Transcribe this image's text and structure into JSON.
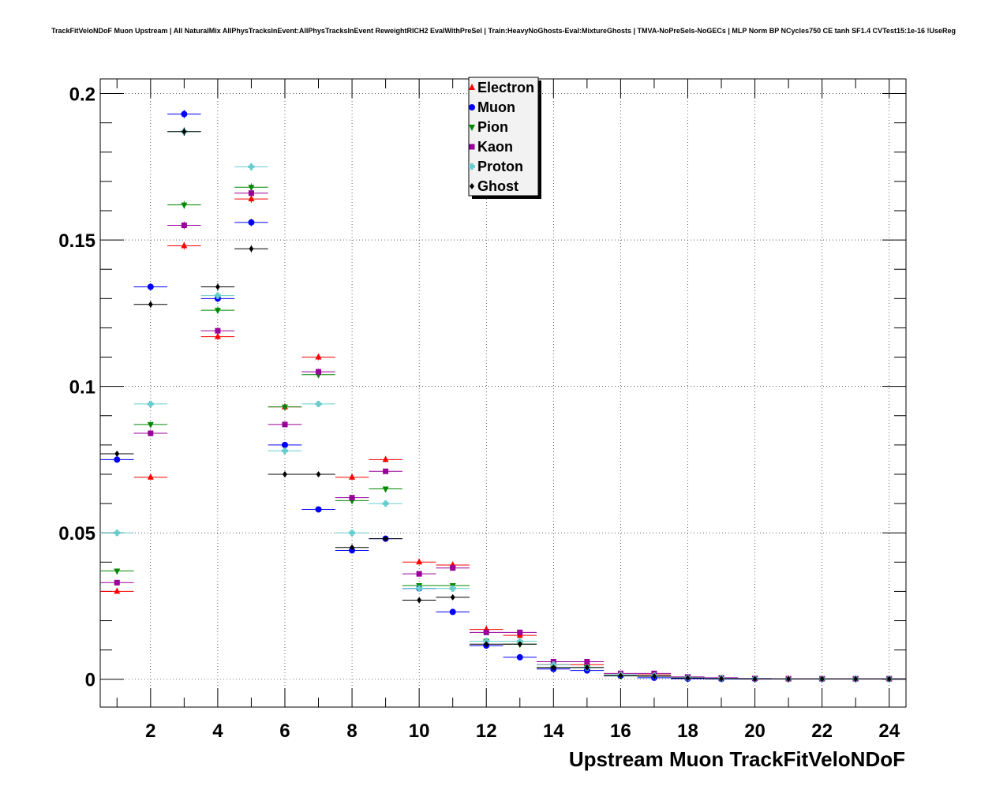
{
  "chart_data": {
    "type": "scatter",
    "title": "TrackFitVeloNDoF Muon Upstream | All NaturalMix AllPhysTracksInEvent:AllPhysTracksInEvent ReweightRICH2 EvalWithPreSel | Train:HeavyNoGhosts-Eval:MixtureGhosts | TMVA-NoPreSels-NoGECs | MLP Norm BP NCycles750 CE tanh SF1.4 CVTest15:1e-16 !UseReg",
    "xlabel": "Upstream Muon TrackFitVeloNDoF",
    "ylabel": "",
    "xlim": [
      0.5,
      24.5
    ],
    "ylim": [
      -0.0095,
      0.205
    ],
    "grid": true,
    "x_ticks": [
      "2",
      "4",
      "6",
      "8",
      "10",
      "12",
      "14",
      "16",
      "18",
      "20",
      "22",
      "24"
    ],
    "y_ticks": [
      "0",
      "0.05",
      "0.1",
      "0.15",
      "0.2"
    ],
    "legend_position": "top-center",
    "x": [
      1,
      2,
      3,
      4,
      5,
      6,
      7,
      8,
      9,
      10,
      11,
      12,
      13,
      14,
      15,
      16,
      17,
      18,
      19,
      20,
      21,
      22,
      23,
      24
    ],
    "series": [
      {
        "name": "Electron",
        "color": "#ff0000",
        "marker": "triangle-up",
        "values": [
          0.03,
          0.069,
          0.148,
          0.117,
          0.164,
          0.093,
          0.11,
          0.069,
          0.075,
          0.04,
          0.039,
          0.017,
          0.015,
          0.005,
          0.005,
          0.0015,
          0.0015,
          0.0005,
          0.0003,
          0.0002,
          0.0001,
          0.0001,
          0.0001,
          0.0001
        ]
      },
      {
        "name": "Muon",
        "color": "#0000ff",
        "marker": "circle",
        "values": [
          0.075,
          0.134,
          0.193,
          0.13,
          0.156,
          0.08,
          0.058,
          0.044,
          0.048,
          0.031,
          0.023,
          0.0115,
          0.0075,
          0.0035,
          0.003,
          0.0012,
          0.0005,
          0.0002,
          0.0001,
          0.0001,
          0.0001,
          0.0001,
          0.0001,
          0.0001
        ]
      },
      {
        "name": "Pion",
        "color": "#008800",
        "marker": "triangle-down",
        "values": [
          0.037,
          0.087,
          0.162,
          0.126,
          0.168,
          0.093,
          0.104,
          0.061,
          0.065,
          0.032,
          0.032,
          0.013,
          0.012,
          0.004,
          0.004,
          0.0012,
          0.0012,
          0.0005,
          0.0003,
          0.0002,
          0.0001,
          0.0001,
          0.0001,
          0.0001
        ]
      },
      {
        "name": "Kaon",
        "color": "#990099",
        "marker": "square",
        "values": [
          0.033,
          0.084,
          0.155,
          0.119,
          0.166,
          0.087,
          0.105,
          0.062,
          0.071,
          0.036,
          0.038,
          0.016,
          0.016,
          0.006,
          0.006,
          0.002,
          0.002,
          0.0008,
          0.0005,
          0.0003,
          0.0002,
          0.0002,
          0.0002,
          0.0002
        ]
      },
      {
        "name": "Proton",
        "color": "#66cccc",
        "marker": "cross",
        "values": [
          0.05,
          0.094,
          0.187,
          0.131,
          0.175,
          0.078,
          0.094,
          0.05,
          0.06,
          0.031,
          0.031,
          0.013,
          0.013,
          0.005,
          0.004,
          0.0015,
          0.0012,
          0.0005,
          0.0003,
          0.0002,
          0.0001,
          0.0001,
          0.0001,
          0.0001
        ]
      },
      {
        "name": "Ghost",
        "color": "#000000",
        "marker": "diamond",
        "values": [
          0.077,
          0.128,
          0.187,
          0.134,
          0.147,
          0.07,
          0.07,
          0.045,
          0.048,
          0.027,
          0.028,
          0.012,
          0.012,
          0.004,
          0.004,
          0.0012,
          0.001,
          0.0004,
          0.0002,
          0.0001,
          0.0001,
          0.0001,
          0.0001,
          0.0001
        ]
      }
    ]
  }
}
